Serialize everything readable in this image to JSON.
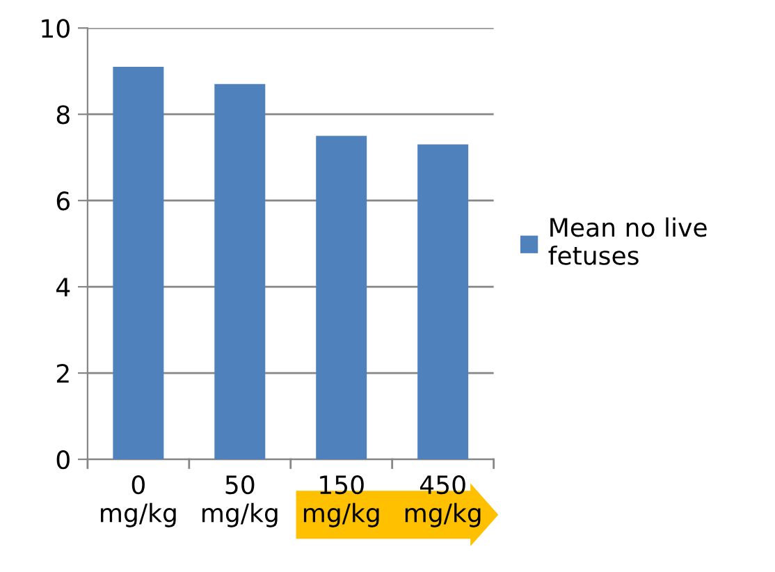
{
  "chart_data": {
    "type": "bar",
    "categories": [
      "0\nmg/kg",
      "50\nmg/kg",
      "150\nmg/kg",
      "450\nmg/kg"
    ],
    "series": [
      {
        "name": "Mean no live\nfetuses",
        "color": "#4f81bd",
        "values": [
          9.1,
          8.7,
          7.5,
          7.3
        ]
      }
    ],
    "ylim": [
      0,
      10
    ],
    "yticks": [
      0,
      2,
      4,
      6,
      8,
      10
    ],
    "grid": "y",
    "legend": "right"
  }
}
